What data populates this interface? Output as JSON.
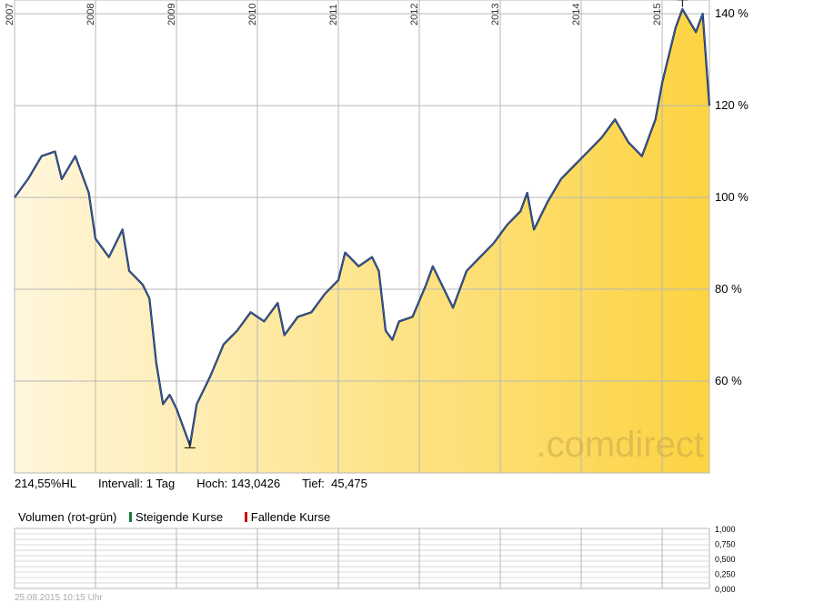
{
  "chart_data": {
    "type": "area",
    "x_labels": [
      "2007",
      "2008",
      "2009",
      "2010",
      "2011",
      "2012",
      "2013",
      "2014",
      "2015"
    ],
    "y_ticks": [
      60,
      80,
      100,
      120,
      140
    ],
    "y_tick_labels": [
      "60 %",
      "80 %",
      "100 %",
      "120 %",
      "140 %"
    ],
    "ylim": [
      40,
      143
    ],
    "xlim": [
      "2007-01",
      "2015-08"
    ],
    "grid": true,
    "series": [
      {
        "color": "#3060c0",
        "points": [
          [
            "2007-01",
            100
          ],
          [
            "2007-03",
            104
          ],
          [
            "2007-05",
            109
          ],
          [
            "2007-07",
            110
          ],
          [
            "2007-08",
            104
          ],
          [
            "2007-10",
            109
          ],
          [
            "2007-12",
            101
          ],
          [
            "2008-01",
            91
          ],
          [
            "2008-03",
            87
          ],
          [
            "2008-05",
            93
          ],
          [
            "2008-06",
            84
          ],
          [
            "2008-08",
            81
          ],
          [
            "2008-09",
            78
          ],
          [
            "2008-10",
            64
          ],
          [
            "2008-11",
            55
          ],
          [
            "2008-12",
            57
          ],
          [
            "2009-01",
            54
          ],
          [
            "2009-03",
            46
          ],
          [
            "2009-04",
            55
          ],
          [
            "2009-06",
            61
          ],
          [
            "2009-08",
            68
          ],
          [
            "2009-10",
            71
          ],
          [
            "2009-12",
            75
          ],
          [
            "2010-02",
            73
          ],
          [
            "2010-04",
            77
          ],
          [
            "2010-05",
            70
          ],
          [
            "2010-07",
            74
          ],
          [
            "2010-09",
            75
          ],
          [
            "2010-11",
            79
          ],
          [
            "2011-01",
            82
          ],
          [
            "2011-02",
            88
          ],
          [
            "2011-04",
            85
          ],
          [
            "2011-06",
            87
          ],
          [
            "2011-07",
            84
          ],
          [
            "2011-08",
            71
          ],
          [
            "2011-09",
            69
          ],
          [
            "2011-10",
            73
          ],
          [
            "2011-12",
            74
          ],
          [
            "2012-02",
            81
          ],
          [
            "2012-03",
            85
          ],
          [
            "2012-05",
            79
          ],
          [
            "2012-06",
            76
          ],
          [
            "2012-08",
            84
          ],
          [
            "2012-10",
            87
          ],
          [
            "2012-12",
            90
          ],
          [
            "2013-02",
            94
          ],
          [
            "2013-04",
            97
          ],
          [
            "2013-05",
            101
          ],
          [
            "2013-06",
            93
          ],
          [
            "2013-08",
            99
          ],
          [
            "2013-10",
            104
          ],
          [
            "2013-12",
            107
          ],
          [
            "2014-02",
            110
          ],
          [
            "2014-04",
            113
          ],
          [
            "2014-06",
            117
          ],
          [
            "2014-08",
            112
          ],
          [
            "2014-10",
            109
          ],
          [
            "2014-12",
            117
          ],
          [
            "2015-01",
            125
          ],
          [
            "2015-03",
            137
          ],
          [
            "2015-04",
            141
          ],
          [
            "2015-06",
            136
          ],
          [
            "2015-07",
            140
          ],
          [
            "2015-08",
            120
          ]
        ]
      }
    ],
    "annotations": [
      {
        "label": "high",
        "x": "2015-04",
        "y": 143.0426
      },
      {
        "label": "low",
        "x": "2009-03",
        "y": 45.475
      }
    ],
    "volume": {
      "title": "Volumen (rot-grün)",
      "legend": [
        {
          "label": "Steigende Kurse",
          "color": "#1a7a3a"
        },
        {
          "label": "Fallende Kurse",
          "color": "#cc1111"
        }
      ],
      "y_tick_labels": [
        "1,000",
        "0,750",
        "0,500",
        "0,250",
        "0,000"
      ]
    }
  },
  "info": {
    "last": "214,55%HL",
    "interval": "Intervall: 1 Tag",
    "high": "Hoch: 143,0426",
    "low": "Tief:  45,475"
  },
  "watermark": ".comdirect",
  "timestamp": "25.08.2015 10:15 Uhr",
  "colors": {
    "fill_start": "#fff6dc",
    "fill_end": "#fcd341",
    "line": "#3060c0",
    "grid": "#b8b8b8"
  }
}
